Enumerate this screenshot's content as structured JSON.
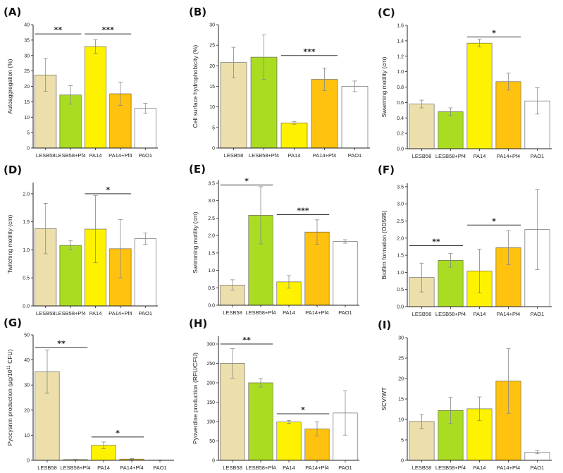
{
  "chart_data": [
    {
      "panel_label": "(A)",
      "type": "bar",
      "categories": [
        "LESB58",
        "LESB58+Pf4",
        "PA14",
        "PA14+Pf4",
        "PAO1"
      ],
      "values": [
        23.7,
        17.2,
        32.9,
        17.6,
        12.9
      ],
      "errors": [
        5.3,
        3.0,
        2.2,
        3.8,
        1.6
      ],
      "ylabel": "Autoaggregation (%)",
      "ylim": [
        0,
        40
      ],
      "yticks": [
        "0",
        "5",
        "10",
        "15",
        "20",
        "25",
        "30",
        "35",
        "40"
      ],
      "significance": [
        {
          "from": 0,
          "to": 1,
          "level": 37,
          "label": "**"
        },
        {
          "from": 2,
          "to": 3,
          "level": 37,
          "label": "***"
        }
      ]
    },
    {
      "panel_label": "(B)",
      "type": "bar",
      "categories": [
        "LESB58",
        "LESB58+Pf4",
        "PA14",
        "PA14+Pf4",
        "PAO1"
      ],
      "values": [
        20.8,
        22.1,
        6.1,
        16.7,
        15.0
      ],
      "errors": [
        3.7,
        5.4,
        0.3,
        2.7,
        1.3
      ],
      "ylabel": "Cell surface hydrophobicity (%)",
      "ylim": [
        0,
        30
      ],
      "yticks": [
        "0",
        "5",
        "10",
        "15",
        "20",
        "25",
        "30"
      ],
      "significance": [
        {
          "from": 2,
          "to": 3,
          "level": 22.5,
          "label": "***"
        }
      ]
    },
    {
      "panel_label": "(C)",
      "type": "bar",
      "categories": [
        "LESB58",
        "LESB58+Pf4",
        "PA14",
        "PA14+Pf4",
        "PAO1"
      ],
      "values": [
        0.58,
        0.48,
        1.37,
        0.87,
        0.62
      ],
      "errors": [
        0.05,
        0.05,
        0.05,
        0.11,
        0.17
      ],
      "ylabel": "Swarming motility (cm)",
      "ylim": [
        0,
        1.6
      ],
      "yticks": [
        "0.0",
        "0.2",
        "0.4",
        "0.6",
        "0.8",
        "1.0",
        "1.2",
        "1.4",
        "1.6"
      ],
      "significance": [
        {
          "from": 2,
          "to": 3,
          "level": 1.45,
          "label": "*"
        }
      ]
    },
    {
      "panel_label": "(D)",
      "type": "bar",
      "categories": [
        "LESB58",
        "LESB58+Pf4",
        "PA14",
        "PA14+Pf4",
        "PAO1"
      ],
      "values": [
        1.38,
        1.08,
        1.37,
        1.02,
        1.2
      ],
      "errors": [
        0.45,
        0.08,
        0.6,
        0.52,
        0.1
      ],
      "ylabel": "Twitching motility (cm)",
      "ylim": [
        0,
        2.2
      ],
      "yticks": [
        "0.0",
        "0.5",
        "1.0",
        "1.5",
        "2.0"
      ],
      "significance": [
        {
          "from": 2,
          "to": 3,
          "level": 2.0,
          "label": "*"
        }
      ]
    },
    {
      "panel_label": "(E)",
      "type": "bar",
      "categories": [
        "LESB58",
        "LESB58+Pf4",
        "PA14",
        "PA14+Pf4",
        "PAO1"
      ],
      "values": [
        0.58,
        2.58,
        0.67,
        2.1,
        1.83
      ],
      "errors": [
        0.15,
        0.82,
        0.18,
        0.35,
        0.05
      ],
      "ylabel": "Swimming motility (cm)",
      "ylim": [
        0,
        3.6
      ],
      "yticks": [
        "0.0",
        "0.5",
        "1.0",
        "1.5",
        "2.0",
        "2.5",
        "3.0",
        "3.5"
      ],
      "significance": [
        {
          "from": 0,
          "to": 1,
          "level": 3.45,
          "label": "*"
        },
        {
          "from": 2,
          "to": 3,
          "level": 2.6,
          "label": "***"
        }
      ]
    },
    {
      "panel_label": "(F)",
      "type": "bar",
      "categories": [
        "LESB58",
        "LESB58+Pf4",
        "PA14",
        "PA14+Pf4",
        "PAO1"
      ],
      "values": [
        0.85,
        1.35,
        1.04,
        1.72,
        2.25
      ],
      "errors": [
        0.42,
        0.2,
        0.64,
        0.5,
        1.17
      ],
      "ylabel": "Biofilm formation (OD595)",
      "ylim": [
        0,
        3.6
      ],
      "yticks": [
        "0.0",
        "0.5",
        "1.0",
        "1.5",
        "2.0",
        "2.5",
        "3.0",
        "3.5"
      ],
      "significance": [
        {
          "from": 0,
          "to": 1,
          "level": 1.78,
          "label": "**"
        },
        {
          "from": 2,
          "to": 3,
          "level": 2.38,
          "label": "*"
        }
      ]
    },
    {
      "panel_label": "(G)",
      "type": "bar",
      "categories": [
        "LESB58",
        "LESB58+Pf4",
        "PA14",
        "PA14+Pf4",
        "PAO1"
      ],
      "values": [
        35.3,
        0.3,
        6.0,
        0.5,
        0.1
      ],
      "errors": [
        8.6,
        0.1,
        1.3,
        0.2,
        0.05
      ],
      "ylabel": "Pyocyanin production (μg/10",
      "ylabel_sup": "11",
      "ylabel_end": " CFU)",
      "ylim": [
        0,
        50
      ],
      "yticks": [
        "0",
        "10",
        "20",
        "30",
        "40",
        "50"
      ],
      "significance": [
        {
          "from": 0,
          "to": 1,
          "level": 45,
          "label": "**"
        },
        {
          "from": 2,
          "to": 3,
          "level": 9.3,
          "label": "*"
        }
      ]
    },
    {
      "panel_label": "(H)",
      "type": "bar",
      "categories": [
        "LESB58",
        "LESB58+Pf4",
        "PA14",
        "PA14+Pf4",
        "PAO1"
      ],
      "values": [
        250,
        200,
        99,
        81,
        122
      ],
      "errors": [
        38,
        11,
        4,
        18,
        57
      ],
      "ylabel": "Pyoverdine production (RFU/CFU)",
      "ylim": [
        0,
        320
      ],
      "yticks": [
        "0",
        "50",
        "100",
        "150",
        "200",
        "250",
        "300"
      ],
      "significance": [
        {
          "from": 0,
          "to": 1,
          "level": 300,
          "label": "**"
        },
        {
          "from": 2,
          "to": 3,
          "level": 120,
          "label": "*"
        }
      ]
    },
    {
      "panel_label": "(I)",
      "type": "bar",
      "categories": [
        "LESB58",
        "LESB58+Pf4",
        "PA14",
        "PA14+Pf4",
        "PAO1"
      ],
      "values": [
        9.5,
        12.2,
        12.6,
        19.4,
        2.0
      ],
      "errors": [
        1.7,
        3.2,
        2.9,
        7.9,
        0.4
      ],
      "ylabel": "SCV/WT",
      "ylim": [
        0,
        30
      ],
      "yticks": [
        "0",
        "5",
        "10",
        "15",
        "20",
        "25",
        "30"
      ],
      "significance": []
    }
  ],
  "colors": {
    "bars": [
      "#eddfab",
      "#aadd22",
      "#fff200",
      "#ffc20e",
      "#ffffff"
    ],
    "bar_stroke": "#555555",
    "axis": "#222222",
    "error": "#888888",
    "sig_line": "#333333"
  }
}
